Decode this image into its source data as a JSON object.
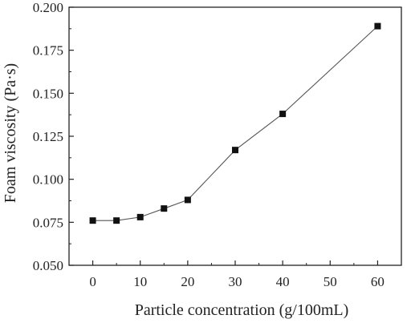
{
  "chart_data": {
    "type": "line",
    "title": "",
    "xlabel": "Particle concentration (g/100mL)",
    "ylabel": "Foam viscosity (Pa·s)",
    "x": [
      0,
      5,
      10,
      15,
      20,
      30,
      40,
      60
    ],
    "series": [
      {
        "values": [
          0.076,
          0.076,
          0.078,
          0.083,
          0.088,
          0.117,
          0.138,
          0.189
        ]
      }
    ],
    "xlim": [
      -5,
      65
    ],
    "ylim": [
      0.05,
      0.2
    ],
    "xticks": [
      0,
      10,
      20,
      30,
      40,
      50,
      60
    ],
    "xtick_labels": [
      "0",
      "10",
      "20",
      "30",
      "40",
      "50",
      "60"
    ],
    "yticks": [
      0.05,
      0.075,
      0.1,
      0.125,
      0.15,
      0.175,
      0.2
    ],
    "ytick_labels": [
      "0.050",
      "0.075",
      "0.100",
      "0.125",
      "0.150",
      "0.175",
      "0.200"
    ],
    "grid": false,
    "legend": "none",
    "marker": "square",
    "colors": {
      "line": "#555555",
      "marker": "#111111",
      "axis": "#222222"
    }
  }
}
